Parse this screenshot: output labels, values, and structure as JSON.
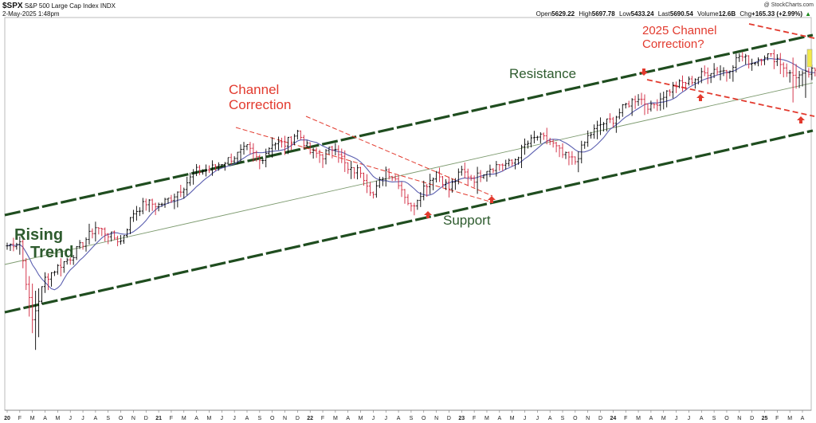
{
  "header": {
    "symbol": "$SPX",
    "name": "S&P 500 Large Cap Index",
    "exchange": "INDX",
    "datetime": "2-May-2025 1:48pm",
    "credit": "@ StockCharts.com",
    "open_label": "Open",
    "open": "5629.22",
    "high_label": "High",
    "high": "5697.78",
    "low_label": "Low",
    "low": "5433.24",
    "last_label": "Last",
    "last": "5690.54",
    "volume_label": "Volume",
    "volume": "12.6B",
    "chg_label": "Chg",
    "chg": "+165.33 (+2.99%)",
    "chg_arrow": "▲"
  },
  "annotations": {
    "rising_trend_line1": "Rising",
    "rising_trend_line2": "Trend",
    "channel_correction_line1": "Channel",
    "channel_correction_line2": "Correction",
    "resistance": "Resistance",
    "support": "Support",
    "correction_2025_line1": "2025 Channel",
    "correction_2025_line2": "Correction?"
  },
  "colors": {
    "trend_channel": "#1f4d1f",
    "annotation_green": "#2e5b2e",
    "correction_red": "#e23a2e",
    "ma_line": "#5b5fb0",
    "up_bar": "#000000",
    "down_bar": "#d0223a",
    "highlight": "#f2e94a"
  },
  "chart_data": {
    "type": "ohlc",
    "title": "S&P 500 Large Cap Index",
    "period": "weekly",
    "grid": false,
    "x_tick_labels": [
      "20",
      "F",
      "M",
      "A",
      "M",
      "J",
      "J",
      "A",
      "S",
      "O",
      "N",
      "D",
      "21",
      "F",
      "M",
      "A",
      "M",
      "J",
      "J",
      "A",
      "S",
      "O",
      "N",
      "D",
      "22",
      "F",
      "M",
      "A",
      "M",
      "J",
      "J",
      "A",
      "S",
      "O",
      "N",
      "D",
      "23",
      "F",
      "M",
      "A",
      "M",
      "J",
      "J",
      "A",
      "S",
      "O",
      "N",
      "D",
      "24",
      "F",
      "M",
      "A",
      "M",
      "J",
      "J",
      "A",
      "S",
      "O",
      "N",
      "D",
      "25",
      "F",
      "M",
      "A"
    ],
    "approx_close_series": [
      {
        "date": "2020-01",
        "value": 3250
      },
      {
        "date": "2020-02",
        "value": 3300
      },
      {
        "date": "2020-03",
        "value": 2480
      },
      {
        "date": "2020-04",
        "value": 2880
      },
      {
        "date": "2020-05",
        "value": 3000
      },
      {
        "date": "2020-06",
        "value": 3100
      },
      {
        "date": "2020-07",
        "value": 3260
      },
      {
        "date": "2020-08",
        "value": 3450
      },
      {
        "date": "2020-09",
        "value": 3360
      },
      {
        "date": "2020-10",
        "value": 3270
      },
      {
        "date": "2020-11",
        "value": 3620
      },
      {
        "date": "2020-12",
        "value": 3750
      },
      {
        "date": "2021-01",
        "value": 3710
      },
      {
        "date": "2021-02",
        "value": 3810
      },
      {
        "date": "2021-03",
        "value": 3970
      },
      {
        "date": "2021-04",
        "value": 4180
      },
      {
        "date": "2021-05",
        "value": 4200
      },
      {
        "date": "2021-06",
        "value": 4300
      },
      {
        "date": "2021-07",
        "value": 4390
      },
      {
        "date": "2021-08",
        "value": 4520
      },
      {
        "date": "2021-09",
        "value": 4310
      },
      {
        "date": "2021-10",
        "value": 4600
      },
      {
        "date": "2021-11",
        "value": 4570
      },
      {
        "date": "2021-12",
        "value": 4770
      },
      {
        "date": "2022-01",
        "value": 4430
      },
      {
        "date": "2022-02",
        "value": 4370
      },
      {
        "date": "2022-03",
        "value": 4530
      },
      {
        "date": "2022-04",
        "value": 4130
      },
      {
        "date": "2022-05",
        "value": 4130
      },
      {
        "date": "2022-06",
        "value": 3780
      },
      {
        "date": "2022-07",
        "value": 4130
      },
      {
        "date": "2022-08",
        "value": 3950
      },
      {
        "date": "2022-09",
        "value": 3590
      },
      {
        "date": "2022-10",
        "value": 3870
      },
      {
        "date": "2022-11",
        "value": 4080
      },
      {
        "date": "2022-12",
        "value": 3840
      },
      {
        "date": "2023-01",
        "value": 4080
      },
      {
        "date": "2023-02",
        "value": 3970
      },
      {
        "date": "2023-03",
        "value": 4110
      },
      {
        "date": "2023-04",
        "value": 4170
      },
      {
        "date": "2023-05",
        "value": 4180
      },
      {
        "date": "2023-06",
        "value": 4450
      },
      {
        "date": "2023-07",
        "value": 4590
      },
      {
        "date": "2023-08",
        "value": 4510
      },
      {
        "date": "2023-09",
        "value": 4290
      },
      {
        "date": "2023-10",
        "value": 4190
      },
      {
        "date": "2023-11",
        "value": 4570
      },
      {
        "date": "2023-12",
        "value": 4770
      },
      {
        "date": "2024-01",
        "value": 4850
      },
      {
        "date": "2024-02",
        "value": 5100
      },
      {
        "date": "2024-03",
        "value": 5250
      },
      {
        "date": "2024-04",
        "value": 5040
      },
      {
        "date": "2024-05",
        "value": 5280
      },
      {
        "date": "2024-06",
        "value": 5460
      },
      {
        "date": "2024-07",
        "value": 5520
      },
      {
        "date": "2024-08",
        "value": 5650
      },
      {
        "date": "2024-09",
        "value": 5760
      },
      {
        "date": "2024-10",
        "value": 5710
      },
      {
        "date": "2024-11",
        "value": 6030
      },
      {
        "date": "2024-12",
        "value": 5880
      },
      {
        "date": "2025-01",
        "value": 6040
      },
      {
        "date": "2025-02",
        "value": 5950
      },
      {
        "date": "2025-03",
        "value": 5610
      },
      {
        "date": "2025-04",
        "value": 5570
      },
      {
        "date": "2025-05",
        "value": 5690
      }
    ]
  }
}
